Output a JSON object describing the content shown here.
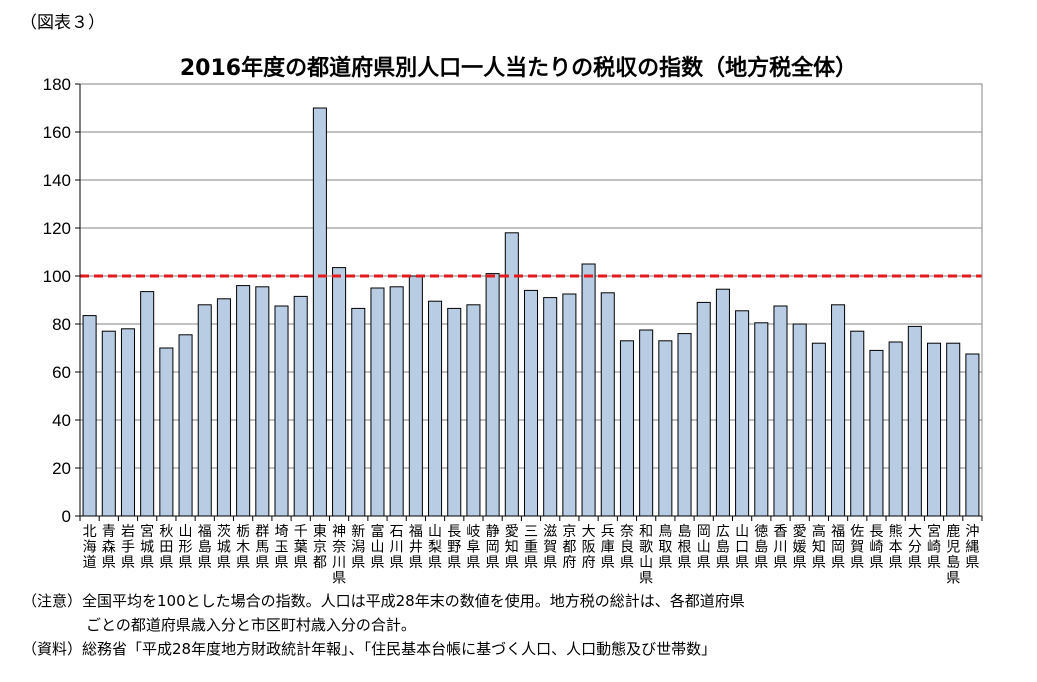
{
  "figure_label": "（図表３）",
  "chart_data": {
    "type": "bar",
    "title": "2016年度の都道府県別人口一人当たりの税収の指数（地方税全体）",
    "categories": [
      "北海道",
      "青森県",
      "岩手県",
      "宮城県",
      "秋田県",
      "山形県",
      "福島県",
      "茨城県",
      "栃木県",
      "群馬県",
      "埼玉県",
      "千葉県",
      "東京都",
      "神奈川県",
      "新潟県",
      "富山県",
      "石川県",
      "福井県",
      "山梨県",
      "長野県",
      "岐阜県",
      "静岡県",
      "愛知県",
      "三重県",
      "滋賀県",
      "京都府",
      "大阪府",
      "兵庫県",
      "奈良県",
      "和歌山県",
      "鳥取県",
      "島根県",
      "岡山県",
      "広島県",
      "山口県",
      "徳島県",
      "香川県",
      "愛媛県",
      "高知県",
      "福岡県",
      "佐賀県",
      "長崎県",
      "熊本県",
      "大分県",
      "宮崎県",
      "鹿児島県",
      "沖縄県"
    ],
    "values": [
      83.5,
      77,
      78,
      93.5,
      70,
      75.5,
      88,
      90.5,
      96,
      95.5,
      87.5,
      91.5,
      170,
      103.5,
      86.5,
      95,
      95.5,
      100,
      89.5,
      86.5,
      88,
      101,
      118,
      94,
      91,
      92.5,
      105,
      93,
      73,
      77.5,
      73,
      76,
      89,
      94.5,
      85.5,
      80.5,
      87.5,
      80,
      72,
      88,
      77,
      69,
      72.5,
      79,
      72,
      72,
      67.5
    ],
    "ylim": [
      0,
      180
    ],
    "yticks": [
      0,
      20,
      40,
      60,
      80,
      100,
      120,
      140,
      160,
      180
    ],
    "reference_line": 100,
    "grid": true,
    "legend": "none",
    "colors": {
      "bar_fill": "#b8cce4",
      "bar_stroke": "#000000",
      "reference_line": "#e41a1c",
      "grid": "#868686"
    }
  },
  "notes": {
    "note_line1": "（注意）全国平均を100とした場合の指数。人口は平成28年末の数値を使用。地方税の総計は、各都道府県",
    "note_line2": "ごとの都道府県歳入分と市区町村歳入分の合計。",
    "source_line": "（資料）総務省「平成28年度地方財政統計年報」、「住民基本台帳に基づく人口、人口動態及び世帯数」"
  }
}
